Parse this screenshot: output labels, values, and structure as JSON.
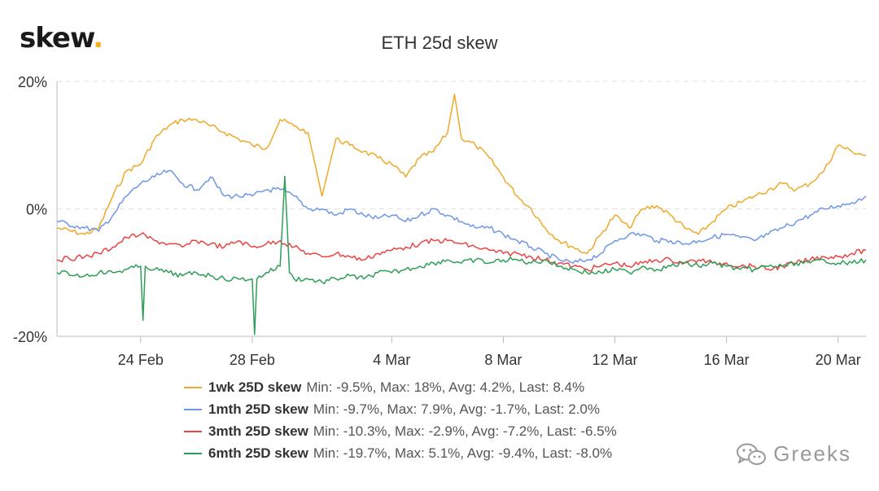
{
  "brand": {
    "name": "skew",
    "dot": "."
  },
  "watermark": {
    "text": "Greeks",
    "icon": "wechat-icon",
    "color": "#9a9a9a"
  },
  "chart_data": {
    "type": "line",
    "title": "ETH 25d skew",
    "xlabel": "",
    "ylabel": "",
    "x_ticks": [
      "24 Feb",
      "28 Feb",
      "4 Mar",
      "8 Mar",
      "12 Mar",
      "16 Mar",
      "20 Mar"
    ],
    "xlim": [
      "2020-02-21",
      "2020-03-21"
    ],
    "y_ticks": [
      "20%",
      "0%",
      "-20%"
    ],
    "ylim": [
      -20,
      20
    ],
    "y_unit": "%",
    "grid": "horizontal",
    "legend_position": "bottom",
    "series": [
      {
        "name": "1wk 25D skew",
        "color": "#f0a929",
        "stats": "Min: -9.5%, Max: 18%, Avg: 4.2%, Last: 8.4%",
        "points": [
          [
            "2020-02-21",
            -3
          ],
          [
            "2020-02-22",
            -4
          ],
          [
            "2020-02-22T12",
            -3
          ],
          [
            "2020-02-23",
            2
          ],
          [
            "2020-02-23T12",
            6
          ],
          [
            "2020-02-24",
            7
          ],
          [
            "2020-02-24T12",
            11
          ],
          [
            "2020-02-25",
            13
          ],
          [
            "2020-02-25T12",
            14
          ],
          [
            "2020-02-26",
            14
          ],
          [
            "2020-02-26T12",
            13
          ],
          [
            "2020-02-27",
            12
          ],
          [
            "2020-02-27T12",
            11
          ],
          [
            "2020-02-28",
            10
          ],
          [
            "2020-02-28T12",
            9.5
          ],
          [
            "2020-02-29",
            14
          ],
          [
            "2020-02-29T12",
            13
          ],
          [
            "2020-03-01",
            12
          ],
          [
            "2020-03-01T12",
            2
          ],
          [
            "2020-03-02",
            11
          ],
          [
            "2020-03-02T12",
            10
          ],
          [
            "2020-03-03",
            9
          ],
          [
            "2020-03-03T12",
            8
          ],
          [
            "2020-03-04",
            7
          ],
          [
            "2020-03-04T12",
            5
          ],
          [
            "2020-03-05",
            8
          ],
          [
            "2020-03-05T12",
            9
          ],
          [
            "2020-03-06",
            12
          ],
          [
            "2020-03-06T06",
            18
          ],
          [
            "2020-03-06T12",
            11
          ],
          [
            "2020-03-07",
            10
          ],
          [
            "2020-03-07T12",
            8
          ],
          [
            "2020-03-08",
            5
          ],
          [
            "2020-03-08T12",
            2
          ],
          [
            "2020-03-09",
            0
          ],
          [
            "2020-03-09T12",
            -3
          ],
          [
            "2020-03-10",
            -5
          ],
          [
            "2020-03-10T12",
            -6
          ],
          [
            "2020-03-11",
            -7
          ],
          [
            "2020-03-11T12",
            -4
          ],
          [
            "2020-03-12",
            -1
          ],
          [
            "2020-03-12T12",
            -3
          ],
          [
            "2020-03-13",
            0
          ],
          [
            "2020-03-13T12",
            0.5
          ],
          [
            "2020-03-14",
            -1
          ],
          [
            "2020-03-14T12",
            -3
          ],
          [
            "2020-03-15",
            -4
          ],
          [
            "2020-03-15T12",
            -2
          ],
          [
            "2020-03-16",
            0
          ],
          [
            "2020-03-16T12",
            1
          ],
          [
            "2020-03-17",
            2
          ],
          [
            "2020-03-17T12",
            3
          ],
          [
            "2020-03-18",
            4
          ],
          [
            "2020-03-18T12",
            3
          ],
          [
            "2020-03-19",
            4
          ],
          [
            "2020-03-19T12",
            6
          ],
          [
            "2020-03-20",
            10
          ],
          [
            "2020-03-20T12",
            9
          ],
          [
            "2020-03-21",
            8.4
          ]
        ]
      },
      {
        "name": "1mth 25D skew",
        "color": "#6f97e8",
        "stats": "Min: -9.7%, Max: 7.9%, Avg: -1.7%, Last: 2.0%",
        "points": [
          [
            "2020-02-21",
            -2
          ],
          [
            "2020-02-22",
            -3
          ],
          [
            "2020-02-22T12",
            -3.5
          ],
          [
            "2020-02-23",
            -1
          ],
          [
            "2020-02-23T12",
            2
          ],
          [
            "2020-02-24",
            4
          ],
          [
            "2020-02-24T12",
            5
          ],
          [
            "2020-02-25",
            6
          ],
          [
            "2020-02-25T12",
            4
          ],
          [
            "2020-02-26",
            3
          ],
          [
            "2020-02-26T12",
            5
          ],
          [
            "2020-02-27",
            2
          ],
          [
            "2020-02-27T12",
            2
          ],
          [
            "2020-02-28",
            2
          ],
          [
            "2020-02-28T12",
            3
          ],
          [
            "2020-02-29",
            3
          ],
          [
            "2020-02-29T12",
            2
          ],
          [
            "2020-03-01",
            0
          ],
          [
            "2020-03-01T12",
            0
          ],
          [
            "2020-03-02",
            -1
          ],
          [
            "2020-03-02T12",
            0
          ],
          [
            "2020-03-03",
            -1
          ],
          [
            "2020-03-03T12",
            -1.5
          ],
          [
            "2020-03-04",
            -1
          ],
          [
            "2020-03-04T12",
            -2
          ],
          [
            "2020-03-05",
            -1
          ],
          [
            "2020-03-05T12",
            0
          ],
          [
            "2020-03-06",
            -1
          ],
          [
            "2020-03-06T12",
            -2
          ],
          [
            "2020-03-07",
            -3
          ],
          [
            "2020-03-07T12",
            -3
          ],
          [
            "2020-03-08",
            -4
          ],
          [
            "2020-03-08T12",
            -5
          ],
          [
            "2020-03-09",
            -6
          ],
          [
            "2020-03-09T12",
            -7
          ],
          [
            "2020-03-10",
            -8
          ],
          [
            "2020-03-10T12",
            -8.5
          ],
          [
            "2020-03-11",
            -8
          ],
          [
            "2020-03-11T12",
            -7
          ],
          [
            "2020-03-12",
            -5
          ],
          [
            "2020-03-12T12",
            -4
          ],
          [
            "2020-03-13",
            -4
          ],
          [
            "2020-03-13T12",
            -5
          ],
          [
            "2020-03-14",
            -5
          ],
          [
            "2020-03-14T12",
            -5.5
          ],
          [
            "2020-03-15",
            -5
          ],
          [
            "2020-03-15T12",
            -4.5
          ],
          [
            "2020-03-16",
            -4
          ],
          [
            "2020-03-16T12",
            -4.5
          ],
          [
            "2020-03-17",
            -5
          ],
          [
            "2020-03-17T12",
            -4
          ],
          [
            "2020-03-18",
            -3
          ],
          [
            "2020-03-18T12",
            -2
          ],
          [
            "2020-03-19",
            -1
          ],
          [
            "2020-03-19T12",
            0
          ],
          [
            "2020-03-20",
            0.5
          ],
          [
            "2020-03-20T12",
            1
          ],
          [
            "2020-03-21",
            2
          ]
        ]
      },
      {
        "name": "3mth 25D skew",
        "color": "#ec4343",
        "stats": "Min: -10.3%, Max: -2.9%, Avg: -7.2%, Last: -6.5%",
        "points": [
          [
            "2020-02-21",
            -8
          ],
          [
            "2020-02-22",
            -7.5
          ],
          [
            "2020-02-22T12",
            -7
          ],
          [
            "2020-02-23",
            -6
          ],
          [
            "2020-02-23T12",
            -4.5
          ],
          [
            "2020-02-24",
            -4
          ],
          [
            "2020-02-24T12",
            -5
          ],
          [
            "2020-02-25",
            -5.5
          ],
          [
            "2020-02-25T12",
            -6
          ],
          [
            "2020-02-26",
            -5
          ],
          [
            "2020-02-26T12",
            -5.5
          ],
          [
            "2020-02-27",
            -6
          ],
          [
            "2020-02-27T12",
            -5
          ],
          [
            "2020-02-28",
            -6
          ],
          [
            "2020-02-28T12",
            -5.5
          ],
          [
            "2020-02-29",
            -5
          ],
          [
            "2020-02-29T12",
            -6
          ],
          [
            "2020-03-01",
            -7
          ],
          [
            "2020-03-01T12",
            -7.5
          ],
          [
            "2020-03-02",
            -7
          ],
          [
            "2020-03-02T12",
            -7.5
          ],
          [
            "2020-03-03",
            -8
          ],
          [
            "2020-03-03T12",
            -7
          ],
          [
            "2020-03-04",
            -6.5
          ],
          [
            "2020-03-04T12",
            -6
          ],
          [
            "2020-03-05",
            -5.5
          ],
          [
            "2020-03-05T12",
            -5
          ],
          [
            "2020-03-06",
            -5
          ],
          [
            "2020-03-06T12",
            -5.5
          ],
          [
            "2020-03-07",
            -6
          ],
          [
            "2020-03-07T12",
            -6.5
          ],
          [
            "2020-03-08",
            -7
          ],
          [
            "2020-03-08T12",
            -7
          ],
          [
            "2020-03-09",
            -7.5
          ],
          [
            "2020-03-09T12",
            -8
          ],
          [
            "2020-03-10",
            -8.5
          ],
          [
            "2020-03-10T12",
            -9
          ],
          [
            "2020-03-11",
            -9.5
          ],
          [
            "2020-03-11T12",
            -9
          ],
          [
            "2020-03-12",
            -8.5
          ],
          [
            "2020-03-12T12",
            -9
          ],
          [
            "2020-03-13",
            -8.5
          ],
          [
            "2020-03-13T12",
            -8
          ],
          [
            "2020-03-14",
            -8
          ],
          [
            "2020-03-14T12",
            -8.5
          ],
          [
            "2020-03-15",
            -8
          ],
          [
            "2020-03-15T12",
            -8.5
          ],
          [
            "2020-03-16",
            -8.5
          ],
          [
            "2020-03-16T12",
            -9
          ],
          [
            "2020-03-17",
            -9
          ],
          [
            "2020-03-17T12",
            -9.5
          ],
          [
            "2020-03-18",
            -9
          ],
          [
            "2020-03-18T12",
            -8.5
          ],
          [
            "2020-03-19",
            -8
          ],
          [
            "2020-03-19T12",
            -7.5
          ],
          [
            "2020-03-20",
            -7.5
          ],
          [
            "2020-03-20T12",
            -7
          ],
          [
            "2020-03-21",
            -6.5
          ]
        ]
      },
      {
        "name": "6mth 25D skew",
        "color": "#2e9e57",
        "stats": "Min: -19.7%, Max: 5.1%, Avg: -9.4%, Last: -8.0%",
        "points": [
          [
            "2020-02-21",
            -10
          ],
          [
            "2020-02-22",
            -10.5
          ],
          [
            "2020-02-22T12",
            -10
          ],
          [
            "2020-02-23",
            -10
          ],
          [
            "2020-02-23T12",
            -9.5
          ],
          [
            "2020-02-24",
            -9
          ],
          [
            "2020-02-24T02",
            -17.5
          ],
          [
            "2020-02-24T04",
            -9
          ],
          [
            "2020-02-24T12",
            -9.5
          ],
          [
            "2020-02-25",
            -10
          ],
          [
            "2020-02-25T12",
            -10.5
          ],
          [
            "2020-02-26",
            -10
          ],
          [
            "2020-02-26T12",
            -10.5
          ],
          [
            "2020-02-27",
            -11
          ],
          [
            "2020-02-27T12",
            -11
          ],
          [
            "2020-02-28",
            -11
          ],
          [
            "2020-02-28T02",
            -19.7
          ],
          [
            "2020-02-28T04",
            -11
          ],
          [
            "2020-02-28T12",
            -10
          ],
          [
            "2020-02-29",
            -9
          ],
          [
            "2020-02-29T04",
            5.1
          ],
          [
            "2020-02-29T08",
            -10
          ],
          [
            "2020-02-29T12",
            -11
          ],
          [
            "2020-03-01",
            -11
          ],
          [
            "2020-03-01T12",
            -11.5
          ],
          [
            "2020-03-02",
            -11
          ],
          [
            "2020-03-02T12",
            -10.5
          ],
          [
            "2020-03-03",
            -11
          ],
          [
            "2020-03-03T12",
            -10
          ],
          [
            "2020-03-04",
            -10
          ],
          [
            "2020-03-04T12",
            -9.5
          ],
          [
            "2020-03-05",
            -9
          ],
          [
            "2020-03-05T12",
            -8.5
          ],
          [
            "2020-03-06",
            -8
          ],
          [
            "2020-03-06T12",
            -8.5
          ],
          [
            "2020-03-07",
            -8
          ],
          [
            "2020-03-07T12",
            -8.5
          ],
          [
            "2020-03-08",
            -8
          ],
          [
            "2020-03-08T12",
            -8
          ],
          [
            "2020-03-09",
            -8.5
          ],
          [
            "2020-03-09T12",
            -8
          ],
          [
            "2020-03-10",
            -9
          ],
          [
            "2020-03-10T12",
            -9.5
          ],
          [
            "2020-03-11",
            -10
          ],
          [
            "2020-03-11T12",
            -10
          ],
          [
            "2020-03-12",
            -9.5
          ],
          [
            "2020-03-12T12",
            -10
          ],
          [
            "2020-03-13",
            -9
          ],
          [
            "2020-03-13T12",
            -9.5
          ],
          [
            "2020-03-14",
            -9
          ],
          [
            "2020-03-14T12",
            -8.5
          ],
          [
            "2020-03-15",
            -9
          ],
          [
            "2020-03-15T12",
            -8.5
          ],
          [
            "2020-03-16",
            -9
          ],
          [
            "2020-03-16T12",
            -9.5
          ],
          [
            "2020-03-17",
            -9.5
          ],
          [
            "2020-03-17T12",
            -9
          ],
          [
            "2020-03-18",
            -9
          ],
          [
            "2020-03-18T12",
            -8.5
          ],
          [
            "2020-03-19",
            -8.5
          ],
          [
            "2020-03-19T12",
            -8
          ],
          [
            "2020-03-20",
            -8.5
          ],
          [
            "2020-03-20T12",
            -8.5
          ],
          [
            "2020-03-21",
            -8
          ]
        ]
      }
    ]
  }
}
